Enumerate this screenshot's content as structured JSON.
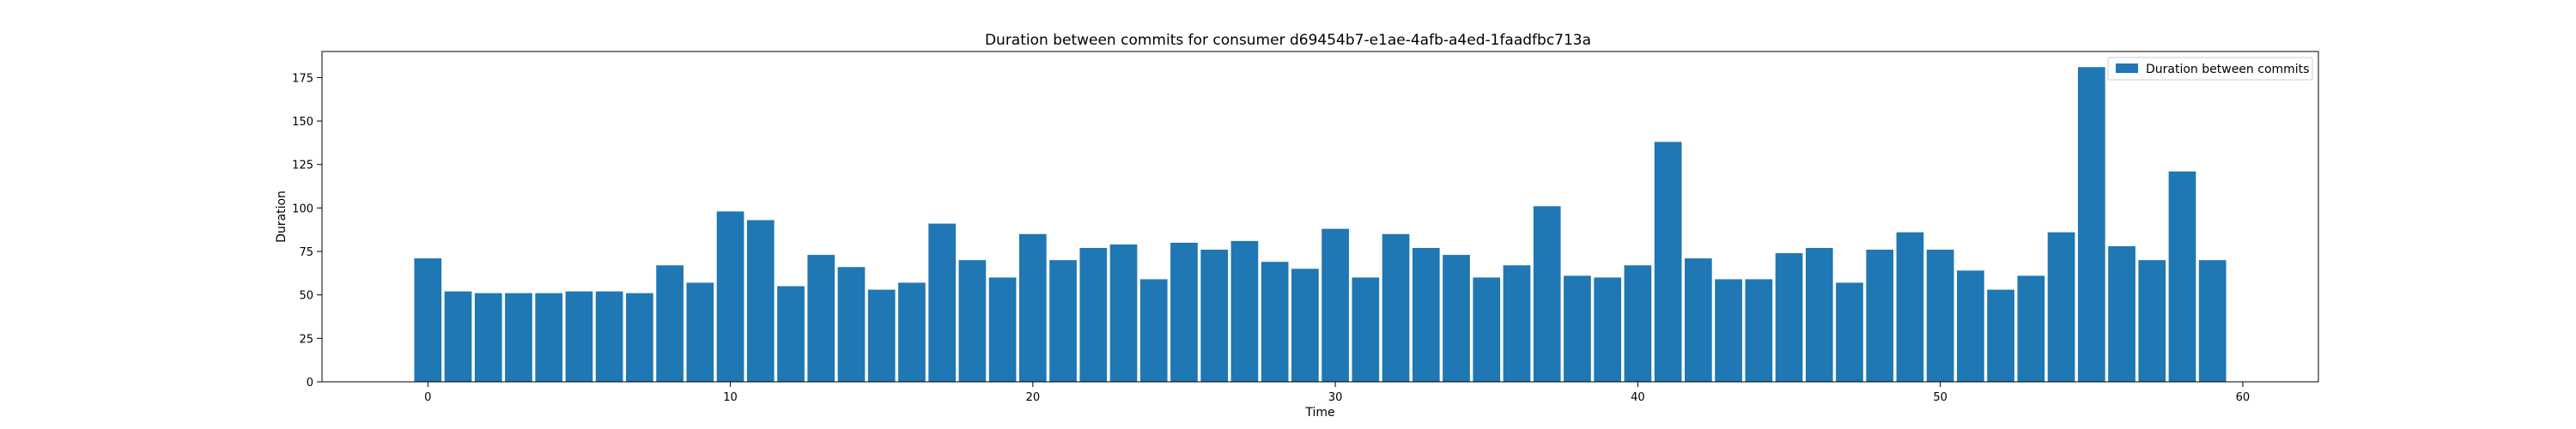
{
  "chart_data": {
    "type": "bar",
    "title": "Duration between commits for consumer d69454b7-e1ae-4afb-a4ed-1faadfbc713a",
    "xlabel": "Time",
    "ylabel": "Duration",
    "xlim": [
      -3.5,
      62.5
    ],
    "ylim": [
      0,
      190
    ],
    "xticks": [
      0,
      10,
      20,
      30,
      40,
      50,
      60
    ],
    "yticks": [
      0,
      25,
      50,
      75,
      100,
      125,
      150,
      175
    ],
    "grid": false,
    "legend": {
      "position": "upper-right",
      "entries": [
        "Duration between commits"
      ]
    },
    "colors": {
      "bar": "#1f77b4"
    },
    "series": [
      {
        "name": "Duration between commits",
        "x": [
          0,
          1,
          2,
          3,
          4,
          5,
          6,
          7,
          8,
          9,
          10,
          11,
          12,
          13,
          14,
          15,
          16,
          17,
          18,
          19,
          20,
          21,
          22,
          23,
          24,
          25,
          26,
          27,
          28,
          29,
          30,
          31,
          32,
          33,
          34,
          35,
          36,
          37,
          38,
          39,
          40,
          41,
          42,
          43,
          44,
          45,
          46,
          47,
          48,
          49,
          50,
          51,
          52,
          53,
          54,
          55,
          56,
          57,
          58,
          59
        ],
        "values": [
          71,
          52,
          51,
          51,
          51,
          52,
          52,
          51,
          67,
          57,
          98,
          93,
          55,
          73,
          66,
          53,
          57,
          91,
          70,
          60,
          85,
          70,
          77,
          79,
          59,
          80,
          76,
          81,
          69,
          65,
          88,
          60,
          85,
          77,
          73,
          60,
          67,
          101,
          61,
          60,
          67,
          138,
          71,
          59,
          59,
          74,
          77,
          57,
          76,
          86,
          76,
          64,
          53,
          61,
          86,
          181,
          78,
          70,
          121,
          70
        ]
      }
    ]
  }
}
